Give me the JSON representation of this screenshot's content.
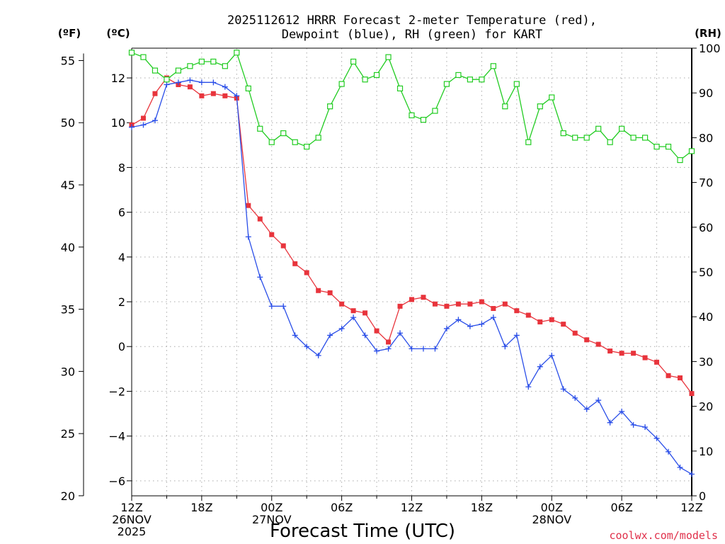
{
  "chart_data": {
    "type": "line",
    "title_line1": "2025112612 HRRR Forecast 2-meter Temperature (red),",
    "title_line2": "Dewpoint (blue), RH (green) for KART",
    "xlabel": "Forecast Time (UTC)",
    "credit": "coolwx.com/models",
    "unit_f": "(ºF)",
    "unit_c": "(ºC)",
    "unit_rh": "(RH)",
    "x_hours": [
      0,
      1,
      2,
      3,
      4,
      5,
      6,
      7,
      8,
      9,
      10,
      11,
      12,
      13,
      14,
      15,
      16,
      17,
      18,
      19,
      20,
      21,
      22,
      23,
      24,
      25,
      26,
      27,
      28,
      29,
      30,
      31,
      32,
      33,
      34,
      35,
      36,
      37,
      38,
      39,
      40,
      41,
      42,
      43,
      44,
      45,
      46,
      47,
      48
    ],
    "x_tick_labels": [
      {
        "hour": 0,
        "lines": [
          "12Z",
          "26NOV",
          "2025"
        ]
      },
      {
        "hour": 6,
        "lines": [
          "18Z"
        ]
      },
      {
        "hour": 12,
        "lines": [
          "00Z",
          "27NOV"
        ]
      },
      {
        "hour": 18,
        "lines": [
          "06Z"
        ]
      },
      {
        "hour": 24,
        "lines": [
          "12Z"
        ]
      },
      {
        "hour": 30,
        "lines": [
          "18Z"
        ]
      },
      {
        "hour": 36,
        "lines": [
          "00Z",
          "28NOV"
        ]
      },
      {
        "hour": 42,
        "lines": [
          "06Z"
        ]
      },
      {
        "hour": 48,
        "lines": [
          "12Z"
        ]
      }
    ],
    "y_celsius_range": [
      -6.67,
      13.33
    ],
    "y_celsius_ticks": [
      {
        "value": -6,
        "label": "−6"
      },
      {
        "value": -4,
        "label": "−4"
      },
      {
        "value": -2,
        "label": "−2"
      },
      {
        "value": 0,
        "label": "0"
      },
      {
        "value": 2,
        "label": "2"
      },
      {
        "value": 4,
        "label": "4"
      },
      {
        "value": 6,
        "label": "6"
      },
      {
        "value": 8,
        "label": "8"
      },
      {
        "value": 10,
        "label": "10"
      },
      {
        "value": 12,
        "label": "12"
      }
    ],
    "y_fahrenheit_ticks": [
      20,
      25,
      30,
      35,
      40,
      45,
      50,
      55
    ],
    "y_rh_range": [
      0,
      100
    ],
    "y_rh_ticks": [
      0,
      10,
      20,
      30,
      40,
      50,
      60,
      70,
      80,
      90,
      100
    ],
    "grid": true,
    "series": [
      {
        "name": "2-meter Temperature",
        "unit": "C",
        "color": "#e8343c",
        "marker": "filled-square",
        "values": [
          9.9,
          10.2,
          11.3,
          12.0,
          11.7,
          11.6,
          11.2,
          11.3,
          11.2,
          11.1,
          6.3,
          5.7,
          5.0,
          4.5,
          3.7,
          3.3,
          2.5,
          2.4,
          1.9,
          1.6,
          1.5,
          0.7,
          0.2,
          1.8,
          2.1,
          2.2,
          1.9,
          1.8,
          1.9,
          1.9,
          2.0,
          1.7,
          1.9,
          1.6,
          1.4,
          1.1,
          1.2,
          1.0,
          0.6,
          0.3,
          0.1,
          -0.2,
          -0.3,
          -0.3,
          -0.5,
          -0.7,
          -1.3,
          -1.4,
          -2.1
        ]
      },
      {
        "name": "Dewpoint",
        "unit": "C",
        "color": "#2a4ee8",
        "marker": "plus",
        "values": [
          9.8,
          9.9,
          10.1,
          11.7,
          11.8,
          11.9,
          11.8,
          11.8,
          11.6,
          11.2,
          4.9,
          3.1,
          1.8,
          1.8,
          0.5,
          0.0,
          -0.4,
          0.5,
          0.8,
          1.3,
          0.5,
          -0.2,
          -0.1,
          0.6,
          -0.1,
          -0.1,
          -0.1,
          0.8,
          1.2,
          0.9,
          1.0,
          1.3,
          0.0,
          0.5,
          -1.8,
          -0.9,
          -0.4,
          -1.9,
          -2.3,
          -2.8,
          -2.4,
          -3.4,
          -2.9,
          -3.5,
          -3.6,
          -4.1,
          -4.7,
          -5.4,
          -5.7
        ]
      },
      {
        "name": "RH",
        "unit": "%",
        "color": "#22cc22",
        "marker": "open-square",
        "values": [
          99,
          98,
          95,
          93,
          95,
          96,
          97,
          97,
          96,
          99,
          91,
          82,
          79,
          81,
          79,
          78,
          80,
          87,
          92,
          97,
          93,
          94,
          98,
          91,
          85,
          84,
          86,
          92,
          94,
          93,
          93,
          96,
          87,
          92,
          79,
          87,
          89,
          81,
          80,
          80,
          82,
          79,
          82,
          80,
          80,
          78,
          78,
          75,
          77
        ]
      }
    ]
  }
}
